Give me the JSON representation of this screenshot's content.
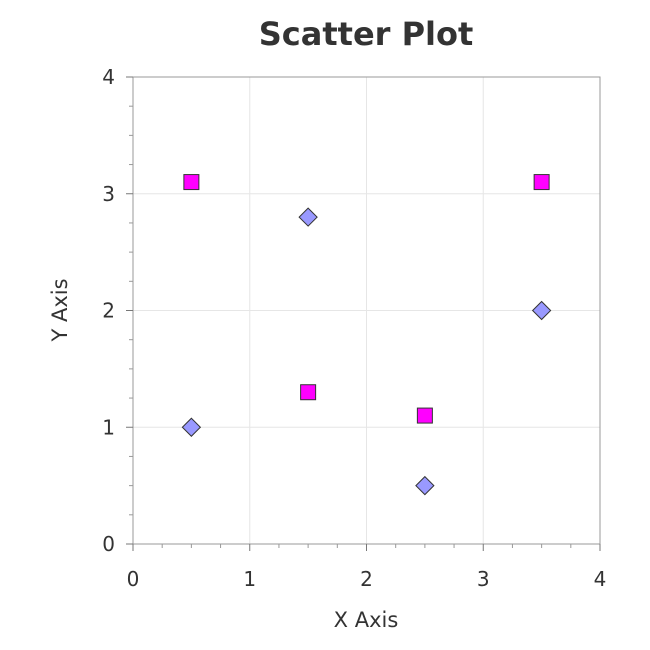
{
  "chart_data": {
    "type": "scatter",
    "title": "Scatter Plot",
    "xlabel": "X Axis",
    "ylabel": "Y Axis",
    "xlim": [
      0,
      4
    ],
    "ylim": [
      0,
      4
    ],
    "x_ticks": [
      "0",
      "1",
      "2",
      "3",
      "4"
    ],
    "y_ticks": [
      "0",
      "1",
      "2",
      "3",
      "4"
    ],
    "grid": true,
    "legend": null,
    "series": [
      {
        "marker": "diamond",
        "color": "#9999ff",
        "points": [
          {
            "x": 0.5,
            "y": 1.0
          },
          {
            "x": 1.5,
            "y": 2.8
          },
          {
            "x": 2.5,
            "y": 0.5
          },
          {
            "x": 3.5,
            "y": 2.0
          }
        ]
      },
      {
        "marker": "square",
        "color": "#ff00ff",
        "points": [
          {
            "x": 0.5,
            "y": 3.1
          },
          {
            "x": 1.5,
            "y": 1.3
          },
          {
            "x": 2.5,
            "y": 1.1
          },
          {
            "x": 3.5,
            "y": 3.1
          }
        ]
      }
    ]
  }
}
